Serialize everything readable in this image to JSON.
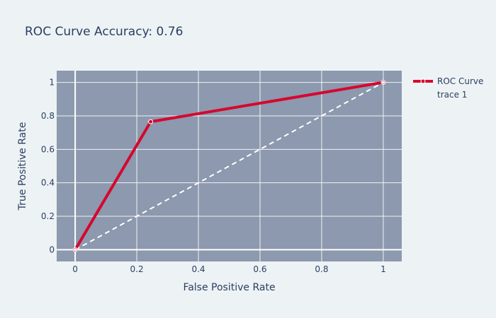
{
  "colors": {
    "page_bg": "#edf2f5",
    "plot_bg": "#8c99ae",
    "grid": "#f2f4f7",
    "roc_line": "#d6072f",
    "diagonal": "#ffffff",
    "text": "#2a3f5f"
  },
  "chart_data": {
    "type": "line",
    "title": "ROC Curve  Accuracy: 0.76",
    "xlabel": "False Positive Rate",
    "ylabel": "True Positive Rate",
    "xlim": [
      -0.06,
      1.06
    ],
    "ylim": [
      -0.07,
      1.07
    ],
    "x_ticks": [
      0,
      0.2,
      0.4,
      0.6,
      0.8,
      1
    ],
    "x_tick_labels": [
      "0",
      "0.2",
      "0.4",
      "0.6",
      "0.8",
      "1"
    ],
    "y_ticks": [
      0,
      0.2,
      0.4,
      0.6,
      0.8,
      1
    ],
    "y_tick_labels": [
      "0",
      "0.2",
      "0.4",
      "0.6",
      "0.8",
      "1"
    ],
    "grid": true,
    "legend_position": "top-right",
    "series": [
      {
        "name": "ROC Curve",
        "style": "lines+markers",
        "color": "#d6072f",
        "x": [
          0,
          0.245,
          1
        ],
        "y": [
          0,
          0.765,
          1
        ]
      },
      {
        "name": "trace 1",
        "style": "dashed",
        "color": "#ffffff",
        "x": [
          0,
          1
        ],
        "y": [
          0,
          1
        ]
      }
    ]
  }
}
